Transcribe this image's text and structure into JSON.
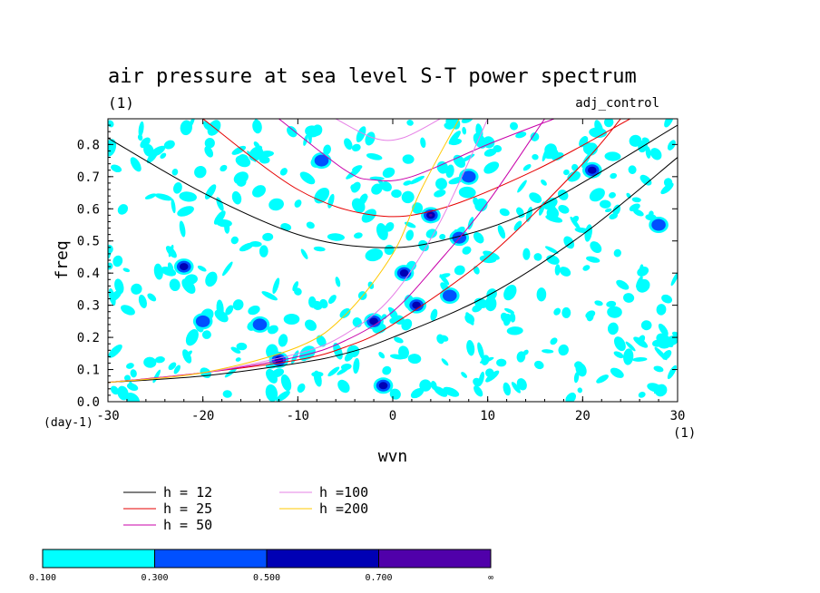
{
  "chart_data": {
    "type": "heatmap",
    "title": "air pressure at sea level S-T power spectrum",
    "subtitle_left": "(1)",
    "subtitle_right": "adj_control",
    "xlabel": "wvn",
    "x_unit": "(1)",
    "ylabel": "freq",
    "y_unit": "(day-1)",
    "xlim": [
      -30,
      30
    ],
    "ylim": [
      0,
      0.88
    ],
    "xticks": [
      -30,
      -20,
      -10,
      0,
      10,
      20,
      30
    ],
    "yticks": [
      0.0,
      0.1,
      0.2,
      0.3,
      0.4,
      0.5,
      0.6,
      0.7,
      0.8
    ],
    "ytick_labels": [
      "0.0",
      "0.1",
      "0.2",
      "0.3",
      "0.4",
      "0.5",
      "0.6",
      "0.7",
      "0.8"
    ],
    "xtick_labels": [
      "-30",
      "-20",
      "-10",
      "0",
      "10",
      "20",
      "30"
    ],
    "colorbar": {
      "levels": [
        "0.100",
        "0.300",
        "0.500",
        "0.700",
        "∞"
      ],
      "colors": [
        "#00ffff",
        "#0050ff",
        "#0000b4",
        "#5000aa"
      ]
    },
    "curves_legend": [
      {
        "label": "h = 12",
        "color": "#000000"
      },
      {
        "label": "h = 25",
        "color": "#e60000"
      },
      {
        "label": "h = 50",
        "color": "#c800aa"
      },
      {
        "label": "h =100",
        "color": "#e680e6"
      },
      {
        "label": "h =200",
        "color": "#ffc800"
      }
    ],
    "dispersion_curves": [
      {
        "family": "inertia-gravity",
        "h": 12,
        "color": "#000000",
        "x": [
          -30,
          -20,
          -10,
          -2,
          5,
          15,
          30
        ],
        "y": [
          0.82,
          0.65,
          0.52,
          0.48,
          0.5,
          0.6,
          0.86
        ]
      },
      {
        "family": "inertia-gravity",
        "h": 25,
        "color": "#e60000",
        "x": [
          -20,
          -10,
          -2,
          5,
          15,
          25
        ],
        "y": [
          0.88,
          0.66,
          0.58,
          0.6,
          0.72,
          0.88
        ]
      },
      {
        "family": "inertia-gravity",
        "h": 50,
        "color": "#c800aa",
        "x": [
          -12,
          -5,
          -2,
          2,
          10,
          17
        ],
        "y": [
          0.88,
          0.72,
          0.69,
          0.7,
          0.8,
          0.88
        ]
      },
      {
        "family": "inertia-gravity",
        "h": 100,
        "color": "#e680e6",
        "x": [
          -6,
          -2,
          1,
          5
        ],
        "y": [
          0.88,
          0.82,
          0.82,
          0.88
        ]
      },
      {
        "family": "kelvin",
        "h": 12,
        "color": "#000000",
        "x": [
          -30,
          -20,
          -10,
          -5,
          0,
          10,
          20,
          30
        ],
        "y": [
          0.06,
          0.08,
          0.12,
          0.15,
          0.2,
          0.33,
          0.52,
          0.76
        ]
      },
      {
        "family": "kelvin",
        "h": 25,
        "color": "#e60000",
        "x": [
          -30,
          -20,
          -10,
          -5,
          0,
          10,
          20,
          24
        ],
        "y": [
          0.06,
          0.09,
          0.13,
          0.17,
          0.24,
          0.45,
          0.74,
          0.88
        ]
      },
      {
        "family": "kelvin",
        "h": 50,
        "color": "#c800aa",
        "x": [
          -30,
          -20,
          -10,
          -5,
          0,
          5,
          10,
          16
        ],
        "y": [
          0.06,
          0.09,
          0.14,
          0.19,
          0.28,
          0.44,
          0.62,
          0.88
        ]
      },
      {
        "family": "kelvin",
        "h": 100,
        "color": "#e680e6",
        "x": [
          -30,
          -20,
          -10,
          -5,
          0,
          5,
          10
        ],
        "y": [
          0.06,
          0.09,
          0.15,
          0.21,
          0.33,
          0.56,
          0.88
        ]
      },
      {
        "family": "kelvin",
        "h": 200,
        "color": "#ffc800",
        "x": [
          -30,
          -20,
          -10,
          -5,
          0,
          3,
          7
        ],
        "y": [
          0.06,
          0.09,
          0.17,
          0.27,
          0.46,
          0.66,
          0.88
        ]
      }
    ],
    "blobs": [
      {
        "x": 4.0,
        "y": 0.58,
        "level": 3
      },
      {
        "x": -2.0,
        "y": 0.25,
        "level": 2
      },
      {
        "x": -1.0,
        "y": 0.05,
        "level": 2
      },
      {
        "x": 21.0,
        "y": 0.72,
        "level": 2
      },
      {
        "x": 1.2,
        "y": 0.4,
        "level": 2
      },
      {
        "x": 2.5,
        "y": 0.3,
        "level": 2
      },
      {
        "x": -22.0,
        "y": 0.42,
        "level": 2
      },
      {
        "x": -12.0,
        "y": 0.13,
        "level": 2
      },
      {
        "x": 28.0,
        "y": 0.55,
        "level": 1
      },
      {
        "x": -7.5,
        "y": 0.75,
        "level": 1
      },
      {
        "x": 8.0,
        "y": 0.7,
        "level": 1
      },
      {
        "x": -20.0,
        "y": 0.25,
        "level": 1
      },
      {
        "x": 6.0,
        "y": 0.33,
        "level": 1
      },
      {
        "x": -14.0,
        "y": 0.24,
        "level": 1
      },
      {
        "x": 7.0,
        "y": 0.51,
        "level": 1
      }
    ]
  }
}
